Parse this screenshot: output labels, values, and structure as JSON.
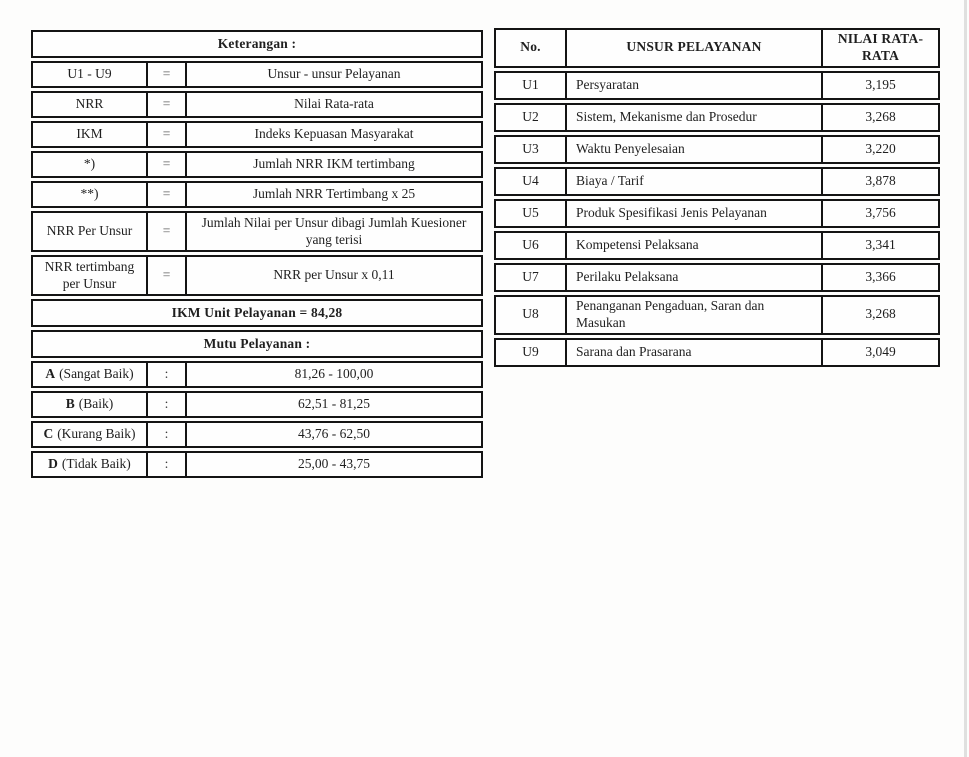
{
  "keterangan": {
    "title": "Keterangan :",
    "rows": [
      {
        "label": "U1 - U9",
        "sep": "=",
        "desc": "Unsur - unsur Pelayanan"
      },
      {
        "label": "NRR",
        "sep": "=",
        "desc": "Nilai Rata-rata"
      },
      {
        "label": "IKM",
        "sep": "=",
        "desc": "Indeks Kepuasan Masyarakat"
      },
      {
        "label": "*)",
        "sep": "=",
        "desc": "Jumlah NRR IKM tertimbang"
      },
      {
        "label": "**)",
        "sep": "=",
        "desc": "Jumlah NRR Tertimbang x 25"
      },
      {
        "label": "NRR Per Unsur",
        "sep": "=",
        "desc": "Jumlah Nilai per Unsur dibagi Jumlah Kuesioner yang terisi"
      },
      {
        "label": "NRR tertimbang per Unsur",
        "sep": "=",
        "desc": "NRR per Unsur x 0,11"
      }
    ],
    "ikm_summary": "IKM Unit Pelayanan = 84,28",
    "mutu_title": "Mutu Pelayanan :",
    "mutu_rows": [
      {
        "grade": "A",
        "name": "(Sangat Baik)",
        "sep": ":",
        "range": "81,26 - 100,00"
      },
      {
        "grade": "B",
        "name": "(Baik)",
        "sep": ":",
        "range": "62,51 - 81,25"
      },
      {
        "grade": "C",
        "name": "(Kurang Baik)",
        "sep": ":",
        "range": "43,76 - 62,50"
      },
      {
        "grade": "D",
        "name": "(Tidak Baik)",
        "sep": ":",
        "range": "25,00 - 43,75"
      }
    ]
  },
  "unsur": {
    "headers": {
      "no": "No.",
      "unsur": "UNSUR PELAYANAN",
      "nilai": "NILAI RATA-RATA"
    },
    "rows": [
      {
        "no": "U1",
        "unsur": "Persyaratan",
        "nilai": "3,195"
      },
      {
        "no": "U2",
        "unsur": "Sistem, Mekanisme dan Prosedur",
        "nilai": "3,268"
      },
      {
        "no": "U3",
        "unsur": "Waktu Penyelesaian",
        "nilai": "3,220"
      },
      {
        "no": "U4",
        "unsur": "Biaya / Tarif",
        "nilai": "3,878"
      },
      {
        "no": "U5",
        "unsur": "Produk Spesifikasi Jenis Pelayanan",
        "nilai": "3,756"
      },
      {
        "no": "U6",
        "unsur": "Kompetensi Pelaksana",
        "nilai": "3,341"
      },
      {
        "no": "U7",
        "unsur": "Perilaku Pelaksana",
        "nilai": "3,366"
      },
      {
        "no": "U8",
        "unsur": "Penanganan Pengaduan, Saran dan Masukan",
        "nilai": "3,268"
      },
      {
        "no": "U9",
        "unsur": "Sarana dan Prasarana",
        "nilai": "3,049"
      }
    ],
    "colors": {
      "border": "#141414",
      "text": "#1f1f1f",
      "background": "#fdfdfc"
    }
  }
}
